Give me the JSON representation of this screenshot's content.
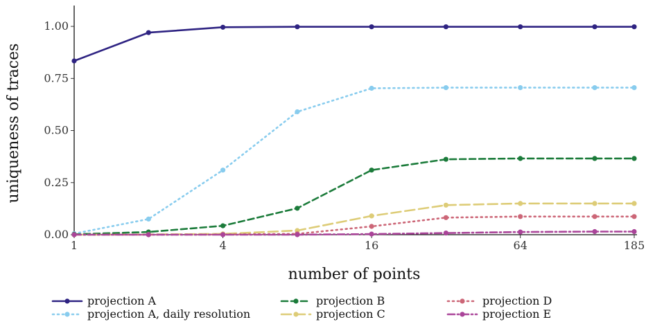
{
  "chart_data": {
    "type": "line",
    "title": "",
    "xlabel": "number of points",
    "ylabel": "uniqueness of traces",
    "x_scale": "log2",
    "x": [
      1,
      2,
      4,
      8,
      16,
      32,
      64,
      128,
      185
    ],
    "xticks": [
      1,
      4,
      16,
      64,
      185
    ],
    "xtick_labels": [
      "1",
      "4",
      "16",
      "64",
      "185"
    ],
    "ylim": [
      0,
      1.1
    ],
    "yticks": [
      0,
      0.25,
      0.5,
      0.75,
      1.0
    ],
    "ytick_labels": [
      "0.00",
      "0.25",
      "0.50",
      "0.75",
      "1.00"
    ],
    "grid": false,
    "legend_position": "bottom",
    "series": [
      {
        "name": "projection A",
        "color": "#2e2382",
        "dash": "solid",
        "values": [
          0.834,
          0.97,
          0.996,
          0.998,
          0.998,
          0.998,
          0.998,
          0.998,
          0.998
        ]
      },
      {
        "name": "projection A, daily resolution",
        "color": "#88ccee",
        "dash": "dotted",
        "values": [
          0.005,
          0.075,
          0.31,
          0.59,
          0.703,
          0.706,
          0.706,
          0.706,
          0.706
        ]
      },
      {
        "name": "projection B",
        "color": "#1b7b3a",
        "dash": "dashed",
        "values": [
          0.002,
          0.013,
          0.043,
          0.127,
          0.31,
          0.362,
          0.366,
          0.366,
          0.366
        ]
      },
      {
        "name": "projection C",
        "color": "#ddcc77",
        "dash": "longdash",
        "values": [
          0.0,
          0.001,
          0.004,
          0.02,
          0.09,
          0.142,
          0.15,
          0.15,
          0.15
        ]
      },
      {
        "name": "projection D",
        "color": "#cc6677",
        "dash": "dotted",
        "values": [
          0.0,
          0.0,
          0.001,
          0.004,
          0.04,
          0.082,
          0.087,
          0.087,
          0.087
        ]
      },
      {
        "name": "projection E",
        "color": "#aa4499",
        "dash": "dotdash",
        "values": [
          0.0,
          0.0,
          0.0,
          0.0,
          0.003,
          0.008,
          0.013,
          0.015,
          0.015
        ]
      }
    ]
  },
  "legend": {
    "items": [
      {
        "label": "projection A"
      },
      {
        "label": "projection B"
      },
      {
        "label": "projection D"
      },
      {
        "label": "projection A, daily resolution"
      },
      {
        "label": "projection C"
      },
      {
        "label": "projection E"
      }
    ]
  }
}
